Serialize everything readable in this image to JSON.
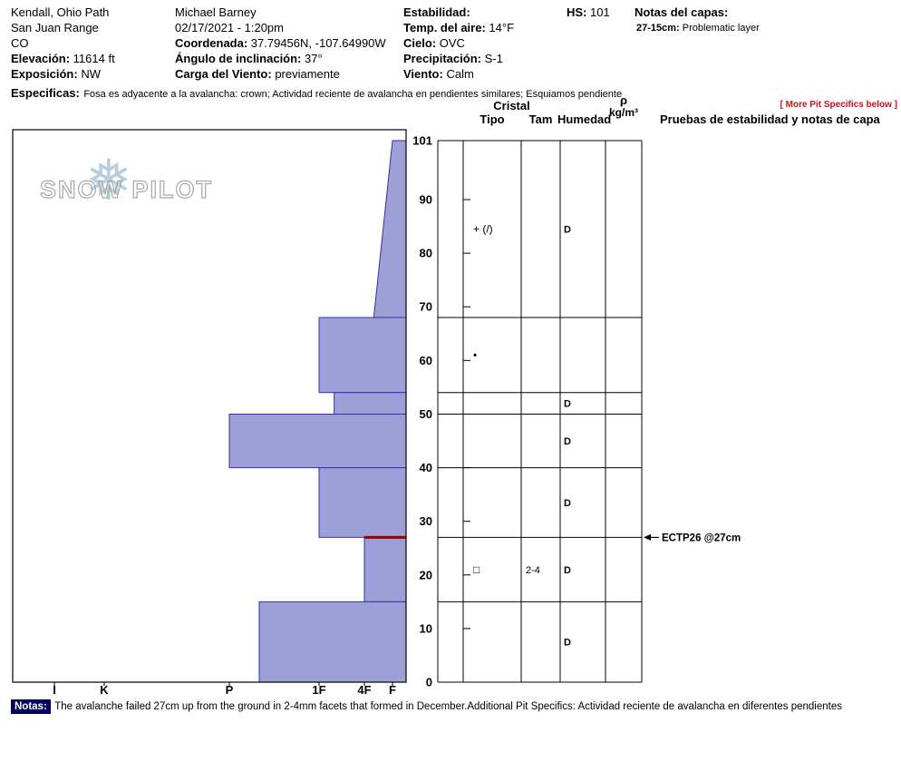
{
  "header": {
    "col1": {
      "line1": "Kendall, Ohio Path",
      "line2": "San Juan Range",
      "line3": "CO",
      "elevation_label": "Elevación:",
      "elevation_value": "11614 ft",
      "aspect_label": "Exposición:",
      "aspect_value": "NW"
    },
    "col2": {
      "observer": "Michael Barney",
      "datetime": "02/17/2021 - 1:20pm",
      "coord_label": "Coordenada:",
      "coord_value": "37.79456N, -107.64990W",
      "slope_label": "Ángulo de inclinación:",
      "slope_value": "37°",
      "windload_label": "Carga del Viento:",
      "windload_value": "previamente"
    },
    "col3": {
      "stability_label": "Estabilidad:",
      "stability_value": "",
      "airtemp_label": "Temp. del aire:",
      "airtemp_value": "14°F",
      "sky_label": "Cielo:",
      "sky_value": "OVC",
      "precip_label": "Precipitación:",
      "precip_value": "S-1",
      "wind_label": "Viento:",
      "wind_value": "Calm"
    },
    "col4": {
      "hs_label": "HS:",
      "hs_value": "101"
    },
    "col5": {
      "layer_notes_label": "Notas del capas:",
      "layer_note_depth": "27-15cm:",
      "layer_note_text": "Problematic layer"
    },
    "specifics_label": "Especificas:",
    "specifics_text": "Fosa es adyacente a la avalancha: crown; Actividad reciente de avalancha en pendientes similares; Esquiamos pendiente",
    "more_specifics": "[ More Pit Specifics below ]"
  },
  "logo": {
    "snowflake": "❅",
    "text": "SNOW PILOT"
  },
  "table": {
    "group_header": "Cristal",
    "col_tipo": "Tipo",
    "col_tam": "Tam",
    "col_humedad": "Humedad",
    "density_symbol": "ρ",
    "density_units": "kg/m³",
    "col_stability": "Pruebas de estabilidad y notas de capa"
  },
  "chart_data": {
    "type": "snow-profile",
    "total_depth_cm": 101,
    "depth_ticks": [
      101,
      90,
      80,
      70,
      60,
      50,
      40,
      30,
      20,
      10,
      0
    ],
    "hardness_scale": [
      "I",
      "K",
      "P",
      "1F",
      "4F",
      "F"
    ],
    "layers": [
      {
        "top_cm": 101,
        "bottom_cm": 68,
        "hardness_top": "F",
        "hardness_bottom": "4F-",
        "grain_type": "+ (/)",
        "grain_size": "",
        "moisture": "D"
      },
      {
        "top_cm": 68,
        "bottom_cm": 54,
        "hardness": "1F",
        "grain_type": "•",
        "grain_size": "",
        "moisture": ""
      },
      {
        "top_cm": 54,
        "bottom_cm": 50,
        "hardness": "1F-",
        "grain_type": "",
        "grain_size": "",
        "moisture": "D"
      },
      {
        "top_cm": 50,
        "bottom_cm": 40,
        "hardness": "P",
        "grain_type": "",
        "grain_size": "",
        "moisture": "D"
      },
      {
        "top_cm": 40,
        "bottom_cm": 27,
        "hardness": "1F",
        "grain_type": "",
        "grain_size": "",
        "moisture": "D"
      },
      {
        "top_cm": 27,
        "bottom_cm": 15,
        "hardness": "4F",
        "grain_type": "□",
        "grain_size": "2-4",
        "moisture": "D",
        "concern": true
      },
      {
        "top_cm": 15,
        "bottom_cm": 0,
        "hardness": "P-",
        "grain_type": "",
        "grain_size": "",
        "moisture": "D"
      }
    ],
    "tests": [
      {
        "label": "ECTP26 @27cm",
        "depth_cm": 27
      }
    ]
  },
  "colors": {
    "layer_fill": "#9f9fd7",
    "layer_stroke": "#3030b0",
    "concern_line": "#990000",
    "accent_red": "#cc1111"
  },
  "footer": {
    "notes_label": "Notas:",
    "notes_text": "The avalanche failed 27cm up from the ground in 2-4mm facets that formed in December.Additional Pit Specifics: Actividad reciente de avalancha en diferentes pendientes"
  }
}
